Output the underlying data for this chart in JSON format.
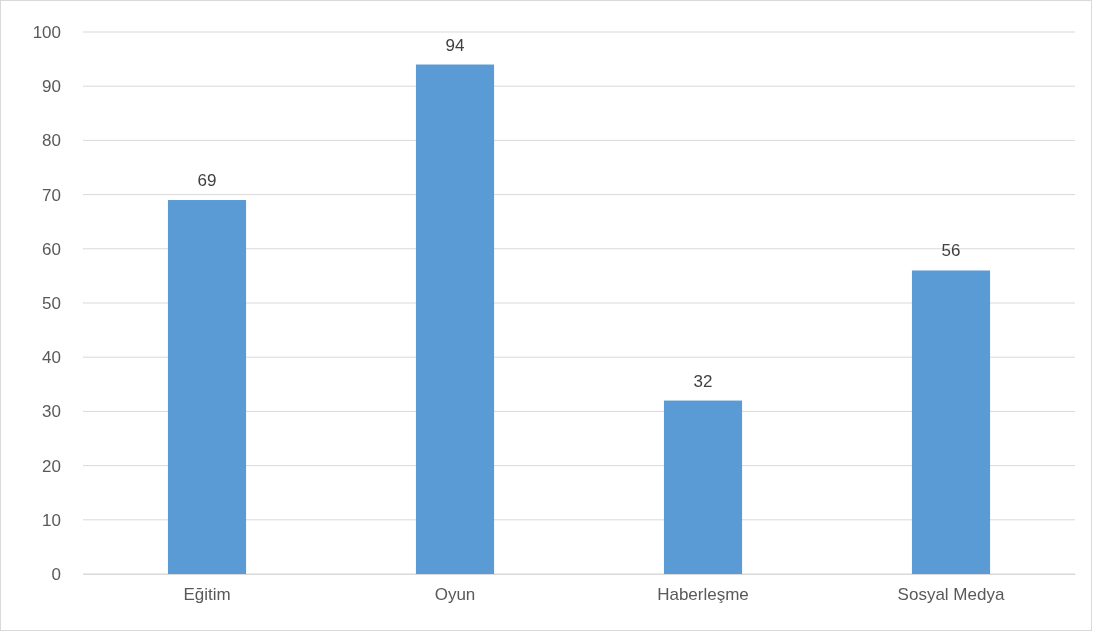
{
  "chart_data": {
    "type": "bar",
    "categories": [
      "Eğitim",
      "Oyun",
      "Haberleşme",
      "Sosyal Medya"
    ],
    "values": [
      69,
      94,
      32,
      56
    ],
    "color": "#5b9bd5",
    "ylim": [
      0,
      100
    ],
    "yticks": [
      0,
      10,
      20,
      30,
      40,
      50,
      60,
      70,
      80,
      90,
      100
    ],
    "grid": "y",
    "data_labels": true
  }
}
